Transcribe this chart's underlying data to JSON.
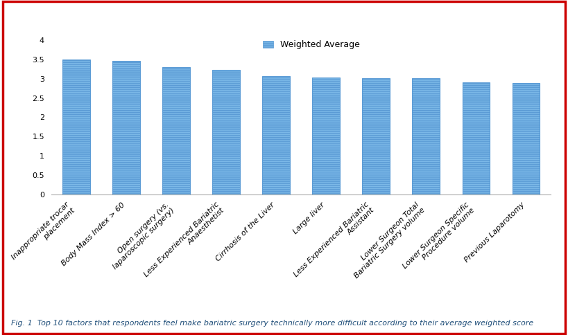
{
  "categories": [
    "Inappropriate trocar\nplacement",
    "Body Mass Index > 60",
    "Open surgery (vs.\nlaparoscopic surgery)",
    "Less Experienced Bariatric\nAnaesthetist",
    "Cirrhosis of the Liver",
    "Large liver",
    "Less Experienced Bariatric\nAssistant",
    "Lower Surgeon Total\nBariatric Surgery volume",
    "Lower Surgeon Specific\nProcedure volume",
    "Previous Laparotomy"
  ],
  "values": [
    3.5,
    3.46,
    3.3,
    3.22,
    3.06,
    3.04,
    3.02,
    3.01,
    2.9,
    2.88
  ],
  "bar_color": "#7cb9e8",
  "bar_edge_color": "#5b9bd5",
  "ylim": [
    0,
    4
  ],
  "yticks": [
    0,
    0.5,
    1,
    1.5,
    2,
    2.5,
    3,
    3.5,
    4
  ],
  "legend_label": "Weighted Average",
  "legend_color": "#7cb9e8",
  "caption": "Fig. 1  Top 10 factors that respondents feel make bariatric surgery technically more difficult according to their average weighted score",
  "background_color": "#ffffff",
  "border_color": "#cc0000",
  "tick_label_fontsize": 8,
  "caption_fontsize": 8,
  "caption_color": "#1f4e79"
}
